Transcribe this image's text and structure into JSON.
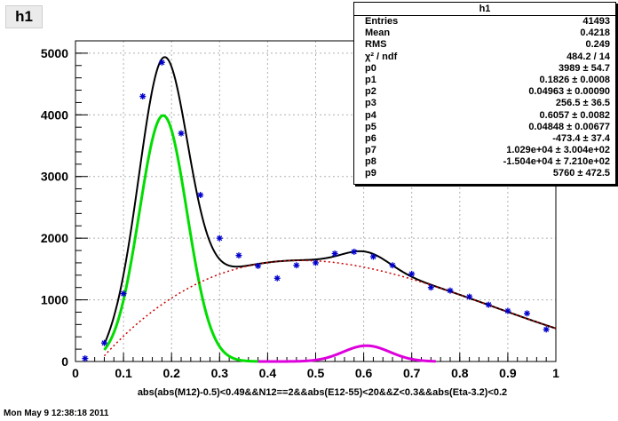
{
  "histogram_title": "h1",
  "footer": "Mon May  9 12:38:18 2011",
  "stats": {
    "title": "h1",
    "rows": [
      {
        "name": "Entries",
        "value": "41493"
      },
      {
        "name": "Mean",
        "value": "0.4218"
      },
      {
        "name": "RMS",
        "value": "0.249"
      },
      {
        "name": "χ² / ndf",
        "value": "484.2 / 14"
      },
      {
        "name": "p0",
        "value": "3989 ± 54.7"
      },
      {
        "name": "p1",
        "value": "0.1826 ± 0.0008"
      },
      {
        "name": "p2",
        "value": "0.04963 ± 0.00090"
      },
      {
        "name": "p3",
        "value": "256.5 ± 36.5"
      },
      {
        "name": "p4",
        "value": "0.6057 ± 0.0082"
      },
      {
        "name": "p5",
        "value": "0.04848 ± 0.00677"
      },
      {
        "name": "p6",
        "value": "-473.4 ± 37.4"
      },
      {
        "name": "p7",
        "value": "1.029e+04 ± 3.004e+02"
      },
      {
        "name": "p8",
        "value": "-1.504e+04 ± 7.210e+02"
      },
      {
        "name": "p9",
        "value": "5760 ± 472.5"
      }
    ]
  },
  "chart_data": {
    "type": "scatter",
    "title": "h1",
    "xlabel": "abs(abs(M12)-0.5)<0.49&&N12==2&&abs(E12-55)<20&&Z<0.3&&abs(Eta-3.2)<0.2",
    "ylabel": "",
    "xlim": [
      0,
      1
    ],
    "ylim": [
      0,
      5200
    ],
    "x_ticks": [
      "0",
      "0.1",
      "0.2",
      "0.3",
      "0.4",
      "0.5",
      "0.6",
      "0.7",
      "0.8",
      "0.9",
      "1"
    ],
    "y_ticks": [
      "0",
      "1000",
      "2000",
      "3000",
      "4000",
      "5000"
    ],
    "grid": true,
    "series": [
      {
        "type": "points",
        "color": "#0000cc",
        "x": [
          0.02,
          0.06,
          0.1,
          0.14,
          0.18,
          0.22,
          0.26,
          0.3,
          0.34,
          0.38,
          0.42,
          0.46,
          0.5,
          0.54,
          0.58,
          0.62,
          0.66,
          0.7,
          0.74,
          0.78,
          0.82,
          0.86,
          0.9,
          0.94,
          0.98
        ],
        "y": [
          50,
          300,
          1100,
          4300,
          4850,
          3700,
          2700,
          2000,
          1720,
          1550,
          1350,
          1560,
          1600,
          1750,
          1780,
          1700,
          1560,
          1420,
          1200,
          1150,
          1050,
          920,
          820,
          780,
          520
        ]
      },
      {
        "type": "function",
        "color": "#000000",
        "formula": "total",
        "x_range": [
          0.06,
          1.0
        ]
      },
      {
        "type": "function",
        "color": "#00dd00",
        "formula": "gaus1",
        "x_range": [
          0.06,
          0.4
        ]
      },
      {
        "type": "function",
        "color": "#dd00dd",
        "formula": "gaus2",
        "x_range": [
          0.38,
          0.75
        ]
      },
      {
        "type": "function",
        "color": "#cc0000",
        "style": "dotted",
        "formula": "poly3",
        "x_range": [
          0.06,
          1.0
        ]
      }
    ],
    "params": {
      "p0": 3989,
      "p1": 0.1826,
      "p2": 0.04963,
      "p3": 256.5,
      "p4": 0.6057,
      "p5": 0.04848,
      "p6": -473.4,
      "p7": 10290,
      "p8": -15040,
      "p9": 5760
    }
  }
}
